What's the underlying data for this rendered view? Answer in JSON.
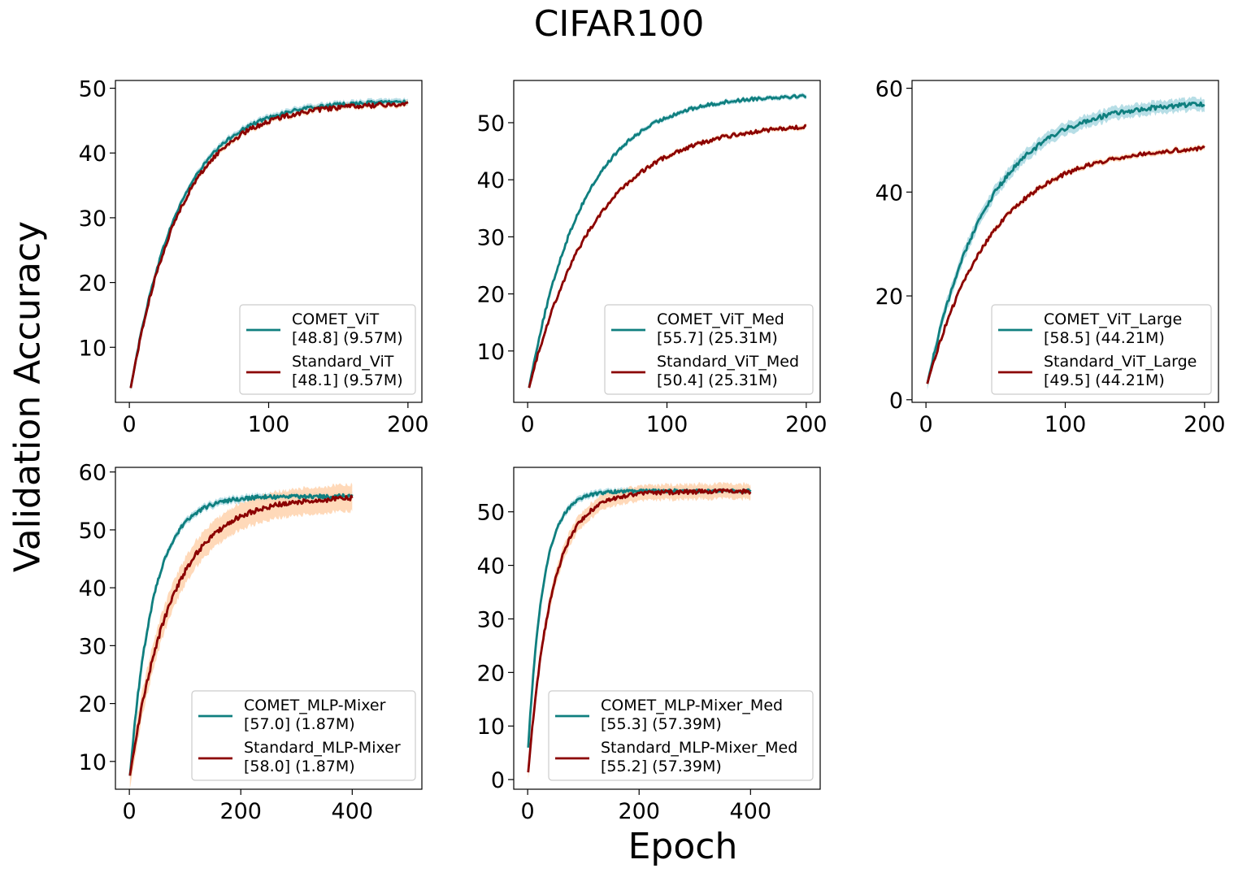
{
  "figure": {
    "title": "CIFAR100",
    "ylabel": "Validation Accuracy",
    "xlabel": "Epoch"
  },
  "colors": {
    "comet": "#0f7f7f",
    "standard": "#8b0000",
    "comet_band": "#9fd3de",
    "standard_band": "#ffd2ad"
  },
  "chart_data": [
    {
      "type": "line",
      "xlim": [
        -10,
        210
      ],
      "ylim": [
        1.5,
        51.2
      ],
      "xticks": [
        0,
        100,
        200
      ],
      "yticks": [
        10,
        20,
        30,
        40,
        50
      ],
      "series": [
        {
          "name": "COMET_ViT",
          "summary": "[48.8] (9.57M)",
          "start": 3.7,
          "end": 48.1,
          "tau": 35,
          "band": 0.5,
          "wiggle": 0.25
        },
        {
          "name": "Standard_ViT",
          "summary": "[48.1] (9.57M)",
          "start": 3.7,
          "end": 47.7,
          "tau": 36,
          "band": 0.4,
          "wiggle": 0.35
        }
      ]
    },
    {
      "type": "line",
      "xlim": [
        -10,
        210
      ],
      "ylim": [
        1.0,
        57.4
      ],
      "xticks": [
        0,
        100,
        200
      ],
      "yticks": [
        10,
        20,
        30,
        40,
        50
      ],
      "series": [
        {
          "name": "COMET_ViT_Med",
          "summary": "[55.7] (25.31M)",
          "start": 3.6,
          "end": 55.0,
          "tau": 39,
          "band": 0.4,
          "wiggle": 0.3
        },
        {
          "name": "Standard_ViT_Med",
          "summary": "[50.4] (25.31M)",
          "start": 3.6,
          "end": 50.0,
          "tau": 48,
          "band": 0.4,
          "wiggle": 0.35
        }
      ]
    },
    {
      "type": "line",
      "xlim": [
        -10,
        210
      ],
      "ylim": [
        -0.5,
        61.5
      ],
      "xticks": [
        0,
        100,
        200
      ],
      "yticks": [
        0,
        20,
        40,
        60
      ],
      "series": [
        {
          "name": "COMET_ViT_Large",
          "summary": "[58.5] (44.21M)",
          "start": 3.1,
          "end": 57.5,
          "tau": 43,
          "band": 1.2,
          "wiggle": 0.45
        },
        {
          "name": "Standard_ViT_Large",
          "summary": "[49.5] (44.21M)",
          "start": 3.1,
          "end": 49.1,
          "tau": 47,
          "band": 0.5,
          "wiggle": 0.4
        }
      ]
    },
    {
      "type": "line",
      "xlim": [
        -25,
        525
      ],
      "ylim": [
        5.2,
        60.8
      ],
      "xticks": [
        0,
        200,
        400
      ],
      "yticks": [
        10,
        20,
        30,
        40,
        50,
        60
      ],
      "series": [
        {
          "name": "COMET_MLP-Mixer",
          "summary": "[57.0] (1.87M)",
          "start": 7.5,
          "end": 55.8,
          "tau": 42,
          "band": 0.6,
          "wiggle": 0.35
        },
        {
          "name": "Standard_MLP-Mixer",
          "summary": "[58.0] (1.87M)",
          "start": 7.5,
          "end": 55.7,
          "tau": 75,
          "band": 2.3,
          "wiggle": 0.45
        }
      ]
    },
    {
      "type": "line",
      "xlim": [
        -25,
        525
      ],
      "ylim": [
        -1.8,
        58.3
      ],
      "xticks": [
        0,
        200,
        400
      ],
      "yticks": [
        0,
        10,
        20,
        30,
        40,
        50
      ],
      "series": [
        {
          "name": "COMET_MLP-Mixer_Med",
          "summary": "[55.3] (57.39M)",
          "start": 6.0,
          "end": 53.9,
          "tau": 27,
          "band": 0.6,
          "wiggle": 0.3
        },
        {
          "name": "Standard_MLP-Mixer_Med",
          "summary": "[55.2] (57.39M)",
          "start": 1.4,
          "end": 53.8,
          "tau": 42,
          "band": 1.4,
          "wiggle": 0.4
        }
      ]
    }
  ]
}
